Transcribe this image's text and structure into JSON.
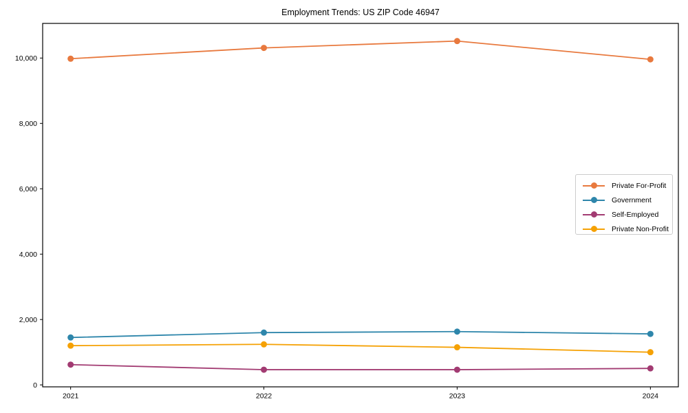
{
  "title": "Employment Trends: US ZIP Code 46947",
  "chart_data": {
    "type": "line",
    "x_categories": [
      "2021",
      "2022",
      "2023",
      "2024"
    ],
    "series": [
      {
        "name": "Private For-Profit",
        "color": "#E8793E",
        "values": [
          9980,
          10310,
          10520,
          9960
        ]
      },
      {
        "name": "Government",
        "color": "#2E86AB",
        "values": [
          1450,
          1600,
          1630,
          1560
        ]
      },
      {
        "name": "Self-Employed",
        "color": "#A23B72",
        "values": [
          620,
          465,
          465,
          505
        ]
      },
      {
        "name": "Private Non-Profit",
        "color": "#F5A104",
        "values": [
          1200,
          1240,
          1150,
          1000
        ]
      }
    ],
    "title": "Employment Trends: US ZIP Code 46947",
    "xlabel": "",
    "ylabel": "",
    "ylim": [
      -60,
      11060
    ],
    "yticks": [
      0,
      2000,
      4000,
      6000,
      8000,
      10000
    ],
    "ytick_labels": [
      "0",
      "2,000",
      "4,000",
      "6,000",
      "8,000",
      "10,000"
    ],
    "legend_position": "center-right",
    "grid": false,
    "marker": "circle"
  }
}
